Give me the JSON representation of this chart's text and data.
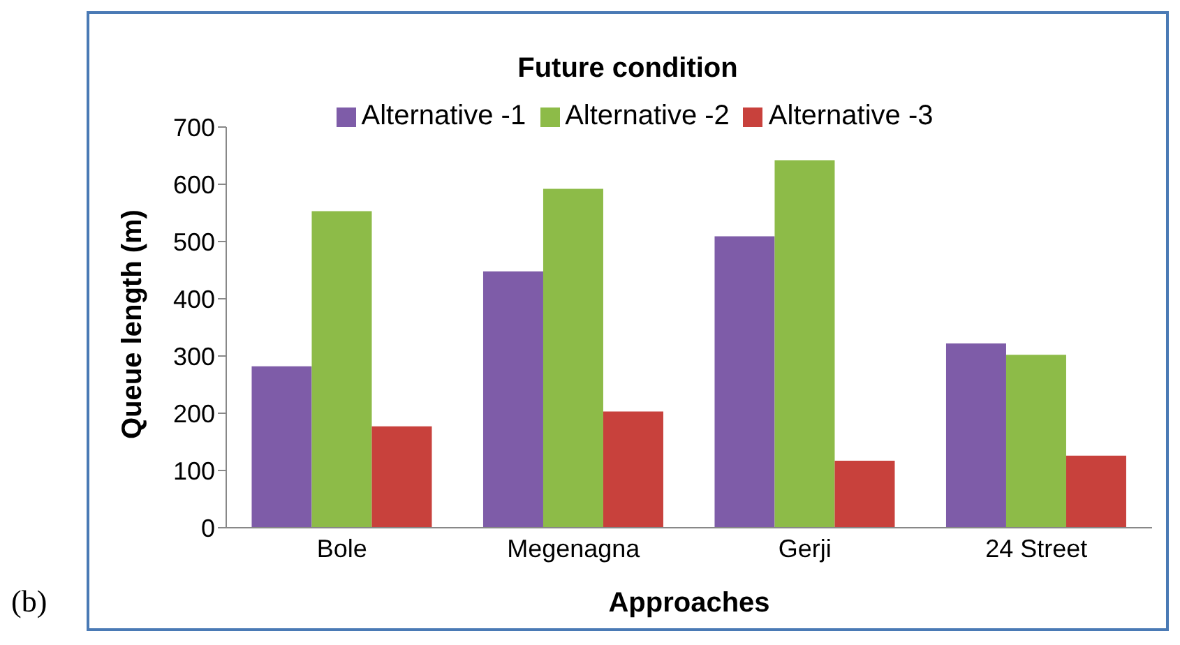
{
  "chart_data": {
    "type": "bar",
    "title": "Future condition",
    "xlabel": "Approaches",
    "ylabel": "Queue length (m)",
    "categories": [
      "Bole",
      "Megenagna",
      "Gerji",
      "24 Street"
    ],
    "series": [
      {
        "name": "Alternative -1",
        "color": "#7e5ca8",
        "values": [
          282,
          448,
          509,
          322
        ]
      },
      {
        "name": "Alternative -2",
        "color": "#8dbb48",
        "values": [
          553,
          592,
          642,
          302
        ]
      },
      {
        "name": "Alternative -3",
        "color": "#c8413c",
        "values": [
          177,
          203,
          117,
          126
        ]
      }
    ],
    "ylim": [
      0,
      700
    ],
    "yticks": [
      0,
      100,
      200,
      300,
      400,
      500,
      600,
      700
    ],
    "legend": "top",
    "annotations": [
      "(b)"
    ]
  }
}
